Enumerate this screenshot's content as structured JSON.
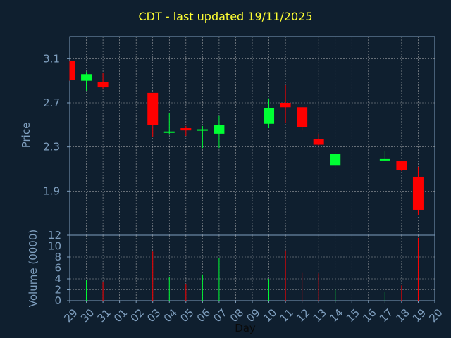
{
  "chart_data": {
    "type": "candlestick",
    "title": "CDT - last updated 19/11/2025",
    "xlabel": "Day",
    "price_panel": {
      "ylabel": "Price",
      "yticks": [
        "1.9",
        "2.3",
        "2.7",
        "3.1"
      ],
      "ylim": [
        1.5,
        3.3
      ],
      "grid": true
    },
    "volume_panel": {
      "ylabel": "Volume (0000)",
      "yticks": [
        "0",
        "2",
        "4",
        "6",
        "8",
        "10",
        "12"
      ],
      "ylim": [
        0,
        12
      ],
      "grid": true
    },
    "categories": [
      "29",
      "30",
      "31",
      "01",
      "02",
      "03",
      "04",
      "05",
      "06",
      "07",
      "08",
      "09",
      "10",
      "11",
      "12",
      "13",
      "14",
      "15",
      "16",
      "17",
      "18",
      "19",
      "20"
    ],
    "candles": [
      {
        "day": "29",
        "open": 3.08,
        "high": 3.08,
        "low": 2.9,
        "close": 2.91,
        "volume": 0
      },
      {
        "day": "30",
        "open": 2.9,
        "high": 2.98,
        "low": 2.81,
        "close": 2.96,
        "volume": 3.8
      },
      {
        "day": "31",
        "open": 2.89,
        "high": 2.97,
        "low": 2.83,
        "close": 2.84,
        "volume": 3.5
      },
      {
        "day": "03",
        "open": 2.79,
        "high": 2.79,
        "low": 2.39,
        "close": 2.5,
        "volume": 9.0
      },
      {
        "day": "04",
        "open": 2.43,
        "high": 2.61,
        "low": 2.41,
        "close": 2.44,
        "volume": 4.4
      },
      {
        "day": "05",
        "open": 2.47,
        "high": 2.49,
        "low": 2.4,
        "close": 2.45,
        "volume": 3.0
      },
      {
        "day": "06",
        "open": 2.45,
        "high": 2.49,
        "low": 2.29,
        "close": 2.46,
        "volume": 4.8
      },
      {
        "day": "07",
        "open": 2.42,
        "high": 2.58,
        "low": 2.29,
        "close": 2.5,
        "volume": 7.8
      },
      {
        "day": "10",
        "open": 2.51,
        "high": 2.74,
        "low": 2.47,
        "close": 2.65,
        "volume": 4.0
      },
      {
        "day": "11",
        "open": 2.7,
        "high": 2.86,
        "low": 2.52,
        "close": 2.66,
        "volume": 9.2
      },
      {
        "day": "12",
        "open": 2.66,
        "high": 2.66,
        "low": 2.45,
        "close": 2.48,
        "volume": 5.2
      },
      {
        "day": "13",
        "open": 2.37,
        "high": 2.42,
        "low": 2.31,
        "close": 2.32,
        "volume": 5.0
      },
      {
        "day": "14",
        "open": 2.13,
        "high": 2.24,
        "low": 2.13,
        "close": 2.24,
        "volume": 2.0
      },
      {
        "day": "17",
        "open": 2.18,
        "high": 2.26,
        "low": 2.17,
        "close": 2.19,
        "volume": 1.6
      },
      {
        "day": "18",
        "open": 2.17,
        "high": 2.17,
        "low": 2.08,
        "close": 2.09,
        "volume": 2.8
      },
      {
        "day": "19",
        "open": 2.03,
        "high": 2.12,
        "low": 1.68,
        "close": 1.73,
        "volume": 11.5
      }
    ],
    "colors": {
      "background": "#0f1f2f",
      "up": "#00ff33",
      "down": "#ff0000",
      "axis_text": "#7f9fbf",
      "title": "#ffff33",
      "grid": "#c0c0c0",
      "frame": "#7f9fbf"
    }
  }
}
